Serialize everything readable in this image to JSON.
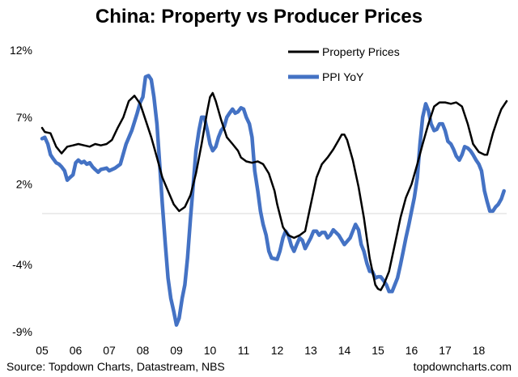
{
  "chart_data": {
    "type": "line",
    "title": "China: Property vs Producer Prices",
    "xlabel": "",
    "ylabel": "",
    "x_start": 2005.0,
    "x_end": 2018.83,
    "ylim": [
      -9,
      12
    ],
    "y_ticks": [
      12,
      7,
      2,
      -4,
      -9
    ],
    "y_tick_labels": [
      "12%",
      "7%",
      "2%",
      "-4%",
      "-9%"
    ],
    "x_ticks": [
      2005,
      2006,
      2007,
      2008,
      2009,
      2010,
      2011,
      2012,
      2013,
      2014,
      2015,
      2016,
      2017,
      2018
    ],
    "x_tick_labels": [
      "05",
      "06",
      "07",
      "08",
      "09",
      "10",
      "11",
      "12",
      "13",
      "14",
      "15",
      "16",
      "17",
      "18"
    ],
    "grid": false,
    "legend_position": "top-right",
    "series": [
      {
        "name": "Property Prices",
        "color": "#000000",
        "points": [
          [
            2005.0,
            6.2
          ],
          [
            2005.08,
            5.9
          ],
          [
            2005.25,
            5.8
          ],
          [
            2005.42,
            4.8
          ],
          [
            2005.58,
            4.3
          ],
          [
            2005.75,
            4.8
          ],
          [
            2005.92,
            4.9
          ],
          [
            2006.08,
            5.0
          ],
          [
            2006.25,
            4.9
          ],
          [
            2006.42,
            4.8
          ],
          [
            2006.58,
            5.0
          ],
          [
            2006.75,
            4.9
          ],
          [
            2006.92,
            5.0
          ],
          [
            2007.08,
            5.3
          ],
          [
            2007.25,
            6.2
          ],
          [
            2007.42,
            7.0
          ],
          [
            2007.58,
            8.2
          ],
          [
            2007.75,
            8.6
          ],
          [
            2007.92,
            8.0
          ],
          [
            2008.08,
            6.8
          ],
          [
            2008.25,
            5.5
          ],
          [
            2008.42,
            4.0
          ],
          [
            2008.58,
            2.5
          ],
          [
            2008.75,
            1.5
          ],
          [
            2008.92,
            0.5
          ],
          [
            2009.08,
            0.0
          ],
          [
            2009.25,
            0.3
          ],
          [
            2009.42,
            1.2
          ],
          [
            2009.58,
            2.8
          ],
          [
            2009.75,
            5.0
          ],
          [
            2009.92,
            7.5
          ],
          [
            2010.0,
            8.5
          ],
          [
            2010.08,
            8.8
          ],
          [
            2010.17,
            8.2
          ],
          [
            2010.33,
            6.8
          ],
          [
            2010.5,
            5.5
          ],
          [
            2010.67,
            5.0
          ],
          [
            2010.83,
            4.5
          ],
          [
            2010.92,
            4.0
          ],
          [
            2011.08,
            3.7
          ],
          [
            2011.25,
            3.6
          ],
          [
            2011.42,
            3.7
          ],
          [
            2011.58,
            3.5
          ],
          [
            2011.75,
            2.8
          ],
          [
            2011.92,
            1.5
          ],
          [
            2012.0,
            0.5
          ],
          [
            2012.17,
            -1.2
          ],
          [
            2012.33,
            -1.8
          ],
          [
            2012.5,
            -2.0
          ],
          [
            2012.67,
            -1.8
          ],
          [
            2012.83,
            -1.5
          ],
          [
            2013.0,
            0.5
          ],
          [
            2013.17,
            2.5
          ],
          [
            2013.33,
            3.5
          ],
          [
            2013.5,
            4.0
          ],
          [
            2013.67,
            4.6
          ],
          [
            2013.83,
            5.3
          ],
          [
            2013.92,
            5.7
          ],
          [
            2014.0,
            5.7
          ],
          [
            2014.08,
            5.3
          ],
          [
            2014.25,
            3.8
          ],
          [
            2014.42,
            1.8
          ],
          [
            2014.58,
            -0.5
          ],
          [
            2014.75,
            -3.5
          ],
          [
            2014.92,
            -5.5
          ],
          [
            2015.0,
            -5.8
          ],
          [
            2015.08,
            -5.9
          ],
          [
            2015.17,
            -5.5
          ],
          [
            2015.33,
            -4.5
          ],
          [
            2015.5,
            -2.5
          ],
          [
            2015.67,
            -0.5
          ],
          [
            2015.83,
            1.0
          ],
          [
            2016.0,
            2.0
          ],
          [
            2016.17,
            3.5
          ],
          [
            2016.33,
            5.0
          ],
          [
            2016.5,
            6.5
          ],
          [
            2016.67,
            7.8
          ],
          [
            2016.83,
            8.1
          ],
          [
            2017.0,
            8.1
          ],
          [
            2017.17,
            8.0
          ],
          [
            2017.33,
            8.1
          ],
          [
            2017.5,
            7.8
          ],
          [
            2017.67,
            6.5
          ],
          [
            2017.83,
            5.0
          ],
          [
            2018.0,
            4.4
          ],
          [
            2018.17,
            4.2
          ],
          [
            2018.25,
            4.2
          ],
          [
            2018.42,
            5.8
          ],
          [
            2018.58,
            7.0
          ],
          [
            2018.67,
            7.6
          ],
          [
            2018.75,
            7.9
          ],
          [
            2018.83,
            8.2
          ]
        ]
      },
      {
        "name": "PPI YoY",
        "color": "#4472c4",
        "points": [
          [
            2005.0,
            5.4
          ],
          [
            2005.08,
            5.5
          ],
          [
            2005.17,
            5.0
          ],
          [
            2005.25,
            4.2
          ],
          [
            2005.33,
            3.9
          ],
          [
            2005.42,
            3.6
          ],
          [
            2005.5,
            3.5
          ],
          [
            2005.58,
            3.3
          ],
          [
            2005.67,
            3.0
          ],
          [
            2005.75,
            2.3
          ],
          [
            2005.83,
            2.5
          ],
          [
            2005.92,
            2.7
          ],
          [
            2006.0,
            3.6
          ],
          [
            2006.08,
            3.8
          ],
          [
            2006.17,
            3.6
          ],
          [
            2006.25,
            3.7
          ],
          [
            2006.33,
            3.5
          ],
          [
            2006.42,
            3.6
          ],
          [
            2006.5,
            3.3
          ],
          [
            2006.58,
            3.1
          ],
          [
            2006.67,
            2.9
          ],
          [
            2006.75,
            3.1
          ],
          [
            2006.92,
            3.2
          ],
          [
            2007.0,
            3.0
          ],
          [
            2007.17,
            3.2
          ],
          [
            2007.33,
            3.5
          ],
          [
            2007.5,
            5.0
          ],
          [
            2007.67,
            6.0
          ],
          [
            2007.83,
            7.3
          ],
          [
            2007.92,
            8.1
          ],
          [
            2008.0,
            8.5
          ],
          [
            2008.08,
            10.0
          ],
          [
            2008.17,
            10.1
          ],
          [
            2008.25,
            9.8
          ],
          [
            2008.33,
            8.5
          ],
          [
            2008.42,
            6.5
          ],
          [
            2008.5,
            3.5
          ],
          [
            2008.58,
            0.5
          ],
          [
            2008.67,
            -2.5
          ],
          [
            2008.75,
            -5.0
          ],
          [
            2008.83,
            -6.5
          ],
          [
            2008.92,
            -7.5
          ],
          [
            2009.0,
            -8.5
          ],
          [
            2009.08,
            -8.0
          ],
          [
            2009.17,
            -6.5
          ],
          [
            2009.25,
            -5.5
          ],
          [
            2009.33,
            -3.5
          ],
          [
            2009.42,
            -0.5
          ],
          [
            2009.5,
            2.0
          ],
          [
            2009.58,
            4.5
          ],
          [
            2009.67,
            6.0
          ],
          [
            2009.75,
            7.0
          ],
          [
            2009.83,
            7.0
          ],
          [
            2009.92,
            6.0
          ],
          [
            2010.0,
            5.0
          ],
          [
            2010.08,
            4.5
          ],
          [
            2010.17,
            4.8
          ],
          [
            2010.25,
            5.5
          ],
          [
            2010.33,
            6.0
          ],
          [
            2010.42,
            6.3
          ],
          [
            2010.5,
            7.0
          ],
          [
            2010.58,
            7.3
          ],
          [
            2010.67,
            7.6
          ],
          [
            2010.75,
            7.3
          ],
          [
            2010.83,
            7.4
          ],
          [
            2010.92,
            7.7
          ],
          [
            2011.0,
            7.6
          ],
          [
            2011.08,
            7.0
          ],
          [
            2011.17,
            6.5
          ],
          [
            2011.25,
            5.5
          ],
          [
            2011.33,
            3.0
          ],
          [
            2011.42,
            1.5
          ],
          [
            2011.5,
            0.0
          ],
          [
            2011.58,
            -1.0
          ],
          [
            2011.67,
            -1.8
          ],
          [
            2011.75,
            -3.0
          ],
          [
            2011.83,
            -3.5
          ],
          [
            2012.0,
            -3.6
          ],
          [
            2012.08,
            -3.0
          ],
          [
            2012.17,
            -2.0
          ],
          [
            2012.25,
            -1.5
          ],
          [
            2012.33,
            -1.8
          ],
          [
            2012.42,
            -2.6
          ],
          [
            2012.5,
            -3.0
          ],
          [
            2012.58,
            -2.5
          ],
          [
            2012.67,
            -2.0
          ],
          [
            2012.75,
            -2.2
          ],
          [
            2012.83,
            -2.8
          ],
          [
            2013.0,
            -2.0
          ],
          [
            2013.08,
            -1.5
          ],
          [
            2013.17,
            -1.5
          ],
          [
            2013.25,
            -1.8
          ],
          [
            2013.33,
            -1.6
          ],
          [
            2013.42,
            -1.6
          ],
          [
            2013.5,
            -2.0
          ],
          [
            2013.58,
            -1.8
          ],
          [
            2013.67,
            -1.4
          ],
          [
            2013.83,
            -1.8
          ],
          [
            2014.0,
            -2.5
          ],
          [
            2014.17,
            -2.0
          ],
          [
            2014.25,
            -1.5
          ],
          [
            2014.33,
            -1.0
          ],
          [
            2014.42,
            -1.4
          ],
          [
            2014.5,
            -2.5
          ],
          [
            2014.58,
            -3.0
          ],
          [
            2014.67,
            -3.9
          ],
          [
            2014.75,
            -4.5
          ],
          [
            2014.83,
            -4.5
          ],
          [
            2014.92,
            -5.0
          ],
          [
            2015.0,
            -4.9
          ],
          [
            2015.08,
            -4.9
          ],
          [
            2015.17,
            -5.2
          ],
          [
            2015.25,
            -5.5
          ],
          [
            2015.33,
            -6.0
          ],
          [
            2015.42,
            -6.0
          ],
          [
            2015.5,
            -5.5
          ],
          [
            2015.58,
            -5.0
          ],
          [
            2015.67,
            -4.0
          ],
          [
            2015.75,
            -3.0
          ],
          [
            2015.83,
            -2.0
          ],
          [
            2015.92,
            -1.0
          ],
          [
            2016.0,
            0.0
          ],
          [
            2016.08,
            1.0
          ],
          [
            2016.17,
            2.5
          ],
          [
            2016.25,
            5.0
          ],
          [
            2016.33,
            7.0
          ],
          [
            2016.42,
            8.0
          ],
          [
            2016.5,
            7.5
          ],
          [
            2016.58,
            6.5
          ],
          [
            2016.67,
            6.0
          ],
          [
            2016.75,
            6.1
          ],
          [
            2016.83,
            6.5
          ],
          [
            2016.92,
            6.5
          ],
          [
            2017.0,
            6.0
          ],
          [
            2017.08,
            5.2
          ],
          [
            2017.17,
            5.0
          ],
          [
            2017.25,
            4.6
          ],
          [
            2017.33,
            4.1
          ],
          [
            2017.42,
            3.8
          ],
          [
            2017.5,
            4.2
          ],
          [
            2017.58,
            4.8
          ],
          [
            2017.67,
            4.7
          ],
          [
            2017.75,
            4.5
          ],
          [
            2017.83,
            4.2
          ],
          [
            2017.92,
            3.8
          ],
          [
            2018.0,
            3.5
          ],
          [
            2018.08,
            3.0
          ],
          [
            2018.17,
            1.5
          ],
          [
            2018.25,
            0.7
          ],
          [
            2018.33,
            0.0
          ],
          [
            2018.42,
            0.0
          ],
          [
            2018.5,
            0.3
          ],
          [
            2018.58,
            0.5
          ],
          [
            2018.67,
            0.9
          ],
          [
            2018.75,
            1.5
          ]
        ]
      }
    ],
    "source_text": "Source: Topdown Charts, Datastream, NBS",
    "brand_text": "topdowncharts.com"
  }
}
